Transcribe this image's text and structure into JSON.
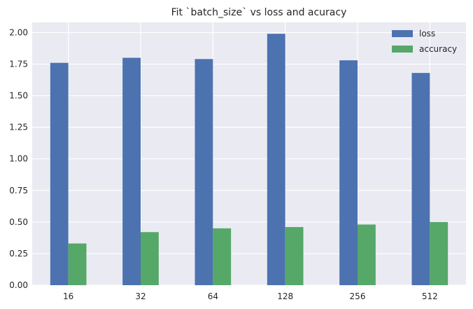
{
  "chart_data": {
    "type": "bar",
    "title": "Fit `batch_size` vs loss and acuracy",
    "xlabel": "",
    "ylabel": "",
    "categories": [
      "16",
      "32",
      "64",
      "128",
      "256",
      "512"
    ],
    "series": [
      {
        "name": "loss",
        "color": "#4C72B0",
        "values": [
          1.76,
          1.8,
          1.79,
          1.99,
          1.78,
          1.68
        ]
      },
      {
        "name": "accuracy",
        "color": "#55A868",
        "values": [
          0.33,
          0.42,
          0.45,
          0.46,
          0.48,
          0.5
        ]
      }
    ],
    "ylim": [
      0,
      2.08
    ],
    "yticks": [
      "0.00",
      "0.25",
      "0.50",
      "0.75",
      "1.00",
      "1.25",
      "1.50",
      "1.75",
      "2.00"
    ],
    "grid": true,
    "legend_position": "top-right",
    "background": "#EAEAF2"
  }
}
